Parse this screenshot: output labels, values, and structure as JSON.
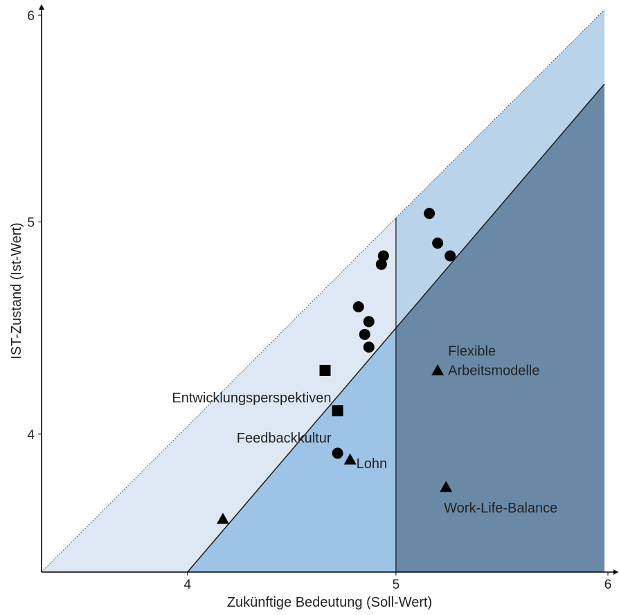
{
  "chart_data": {
    "type": "scatter",
    "xlabel": "Zukünftige Bedeutung (Soll-Wert)",
    "ylabel": "IST-Zustand (Ist-Wert)",
    "x_ticks": [
      "4",
      "5",
      "6"
    ],
    "y_ticks": [
      "4",
      "5",
      "6"
    ],
    "xlim": [
      3.3,
      6.0
    ],
    "ylim": [
      3.35,
      6.0
    ],
    "colors": {
      "region_light": "#dde8f4",
      "region_upper": "#b9d3ea",
      "region_medium": "#9dc3e6",
      "region_dark": "#6a89a6",
      "line": "#1a1a1a",
      "marker": "#000000"
    },
    "regions": [
      {
        "name": "light band",
        "note": "between y=x+1 diagonal and y=x+2 diagonal"
      },
      {
        "name": "upper band",
        "note": "x>=5, between diagonals"
      },
      {
        "name": "below y=x+1",
        "note": "x<5"
      },
      {
        "name": "below y=x+1",
        "note": "x>=5"
      }
    ],
    "series": [
      {
        "marker": "circle",
        "points": [
          {
            "x": 5.16,
            "y": 5.04
          },
          {
            "x": 5.2,
            "y": 4.9
          },
          {
            "x": 5.26,
            "y": 4.84
          },
          {
            "x": 4.94,
            "y": 4.84
          },
          {
            "x": 4.93,
            "y": 4.8
          },
          {
            "x": 4.82,
            "y": 4.6
          },
          {
            "x": 4.87,
            "y": 4.53
          },
          {
            "x": 4.85,
            "y": 4.47
          },
          {
            "x": 4.87,
            "y": 4.41
          },
          {
            "x": 4.72,
            "y": 3.91
          }
        ]
      },
      {
        "marker": "square",
        "points": [
          {
            "x": 4.66,
            "y": 4.3
          },
          {
            "x": 4.72,
            "y": 4.11
          }
        ]
      },
      {
        "marker": "triangle",
        "points": [
          {
            "x": 5.2,
            "y": 4.3
          },
          {
            "x": 5.24,
            "y": 3.75
          },
          {
            "x": 4.78,
            "y": 3.88
          },
          {
            "x": 4.17,
            "y": 3.6
          }
        ]
      }
    ],
    "annotations": [
      {
        "lines": [
          "Flexible",
          "Arbeitsmodelle"
        ],
        "x": 5.25,
        "y": 4.37,
        "anchor": "start"
      },
      {
        "lines": [
          "Entwicklungsperspektiven"
        ],
        "x": 4.69,
        "y": 4.15,
        "anchor": "end"
      },
      {
        "lines": [
          "Feedbackkultur"
        ],
        "x": 4.69,
        "y": 3.96,
        "anchor": "end"
      },
      {
        "lines": [
          "Lohn"
        ],
        "x": 4.81,
        "y": 3.84,
        "anchor": "start"
      },
      {
        "lines": [
          "Work-Life-Balance"
        ],
        "x": 5.23,
        "y": 3.63,
        "anchor": "start"
      }
    ]
  }
}
